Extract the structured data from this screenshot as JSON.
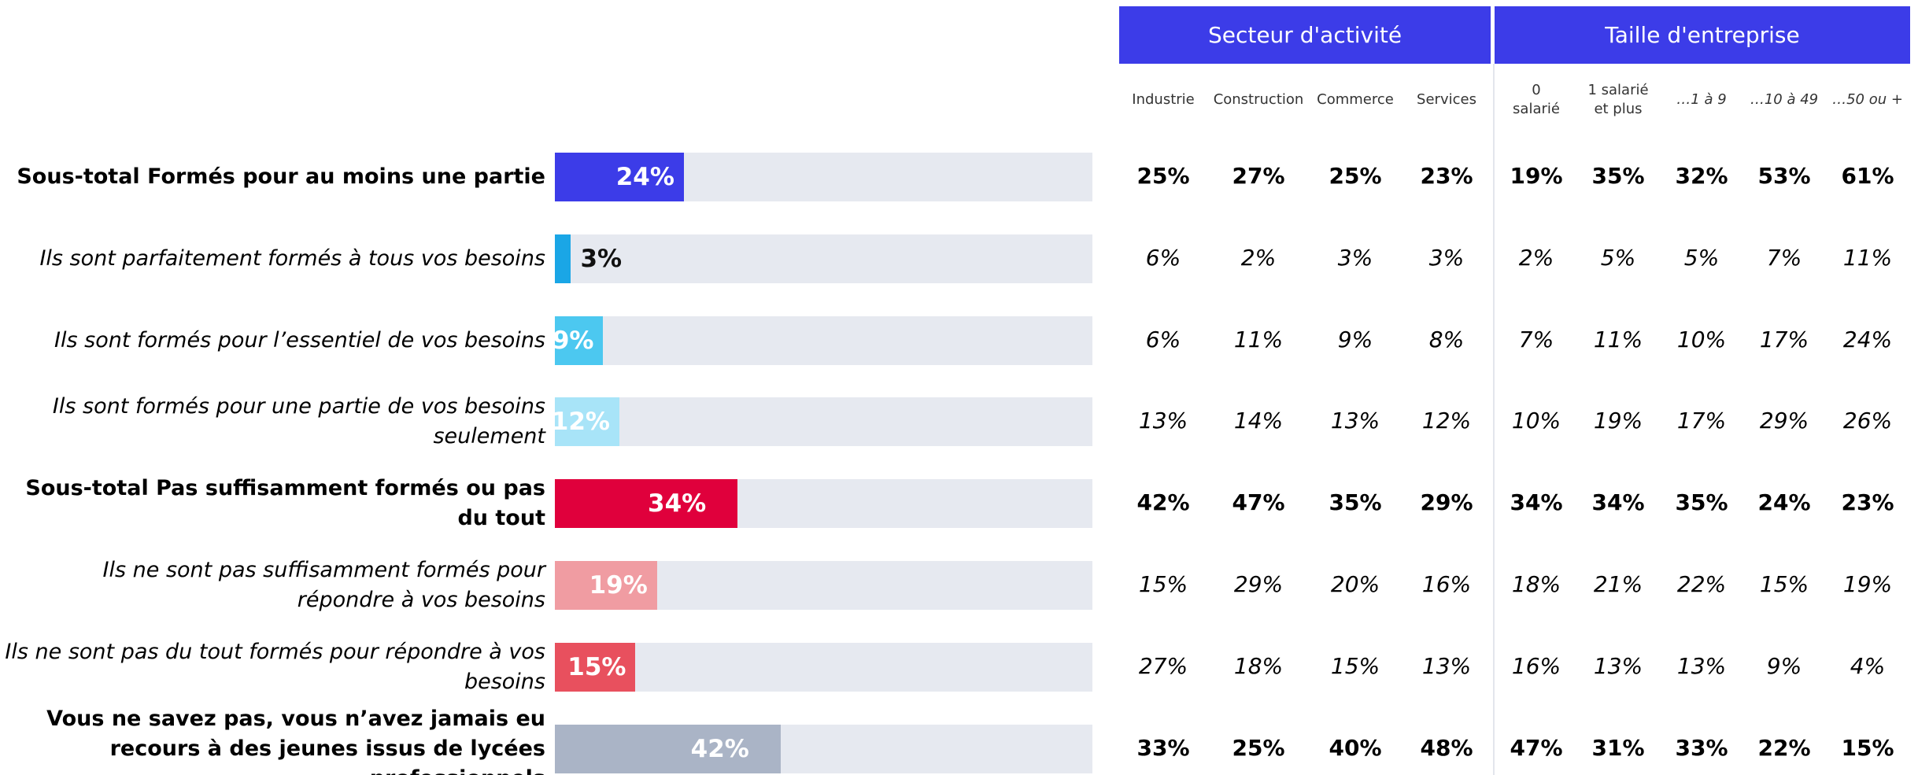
{
  "chart_data": {
    "type": "bar",
    "orientation": "horizontal",
    "categories": [
      "Sous-total Formés pour au moins une partie",
      "Ils sont parfaitement formés à tous vos besoins",
      "Ils sont formés pour l’essentiel de vos besoins",
      "Ils sont formés pour une partie de vos besoins seulement",
      "Sous-total Pas suffisamment formés ou pas du tout",
      "Ils ne sont pas suffisamment formés pour répondre à vos besoins",
      "Ils ne sont pas du tout formés pour répondre à vos besoins",
      "Vous ne savez pas, vous n’avez jamais eu recours à des jeunes issus de lycées professionnels"
    ],
    "values": [
      24,
      3,
      9,
      12,
      34,
      19,
      15,
      42
    ],
    "value_labels": [
      "24%",
      "3%",
      "9%",
      "12%",
      "34%",
      "19%",
      "15%",
      "42%"
    ],
    "colors": [
      "#3c3ce8",
      "#1aa6e6",
      "#4cc8f0",
      "#a8e4f8",
      "#e0003c",
      "#f09ca2",
      "#e8505e",
      "#aab4c6"
    ],
    "row_styles": [
      "bold",
      "italic",
      "italic",
      "italic",
      "bold",
      "italic",
      "italic",
      "bold"
    ],
    "track_color": "#e6e9f0",
    "xlim": [
      0,
      100
    ]
  },
  "table": {
    "groups": [
      {
        "title": "Secteur d'activité",
        "columns": [
          "Industrie",
          "Construction",
          "Commerce",
          "Services"
        ]
      },
      {
        "title": "Taille d'entreprise",
        "columns": [
          "0\nsalarié",
          "1 salarié\net plus",
          "…1 à 9",
          "…10 à 49",
          "…50 ou +"
        ]
      }
    ],
    "rows": [
      [
        "25%",
        "27%",
        "25%",
        "23%",
        "19%",
        "35%",
        "32%",
        "53%",
        "61%"
      ],
      [
        "6%",
        "2%",
        "3%",
        "3%",
        "2%",
        "5%",
        "5%",
        "7%",
        "11%"
      ],
      [
        "6%",
        "11%",
        "9%",
        "8%",
        "7%",
        "11%",
        "10%",
        "17%",
        "24%"
      ],
      [
        "13%",
        "14%",
        "13%",
        "12%",
        "10%",
        "19%",
        "17%",
        "29%",
        "26%"
      ],
      [
        "42%",
        "47%",
        "35%",
        "29%",
        "34%",
        "34%",
        "35%",
        "24%",
        "23%"
      ],
      [
        "15%",
        "29%",
        "20%",
        "16%",
        "18%",
        "21%",
        "22%",
        "15%",
        "19%"
      ],
      [
        "27%",
        "18%",
        "15%",
        "13%",
        "16%",
        "13%",
        "13%",
        "9%",
        "4%"
      ],
      [
        "33%",
        "25%",
        "40%",
        "48%",
        "47%",
        "31%",
        "33%",
        "22%",
        "15%"
      ]
    ]
  }
}
